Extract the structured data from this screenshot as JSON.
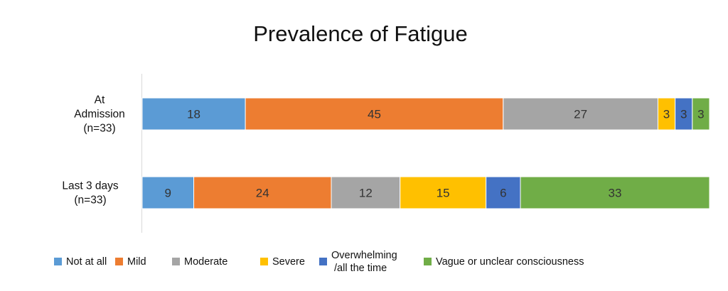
{
  "chart_data": {
    "type": "bar",
    "orientation": "horizontal",
    "stacked": true,
    "title": "Prevalence of Fatigue",
    "categories": [
      [
        "At",
        "Admission",
        "(n=33)"
      ],
      [
        "Last 3 days",
        "(n=33)"
      ]
    ],
    "series": [
      {
        "name": "Not at all",
        "legend_lines": [
          "Not at all"
        ],
        "color": "#5B9BD5",
        "values": [
          18,
          9
        ]
      },
      {
        "name": "Mild",
        "legend_lines": [
          "Mild"
        ],
        "color": "#ED7D31",
        "values": [
          45,
          24
        ]
      },
      {
        "name": "Moderate",
        "legend_lines": [
          "Moderate"
        ],
        "color": "#A5A5A5",
        "values": [
          27,
          12
        ]
      },
      {
        "name": "Severe",
        "legend_lines": [
          "Severe"
        ],
        "color": "#FFC000",
        "values": [
          3,
          15
        ]
      },
      {
        "name": "Overwhelming /all the time",
        "legend_lines": [
          "Overwhelming",
          "/all the time"
        ],
        "color": "#4472C4",
        "values": [
          3,
          6
        ]
      },
      {
        "name": "Vague or unclear consciousness",
        "legend_lines": [
          "Vague or unclear consciousness"
        ],
        "color": "#70AD47",
        "values": [
          3,
          33
        ]
      }
    ],
    "legend_position": "bottom",
    "grid": false
  }
}
